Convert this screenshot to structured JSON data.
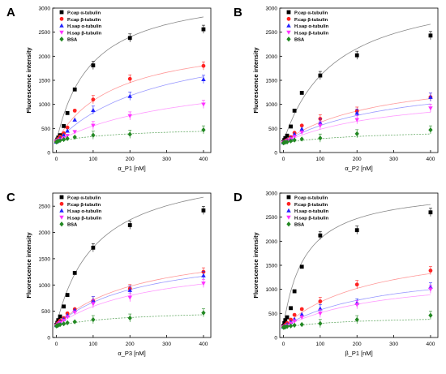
{
  "chart_data": [
    {
      "type": "scatter",
      "panel_label": "A",
      "xlabel": "α_P1 [nM]",
      "ylabel": "Fluorescence intensity",
      "xlim": [
        -10,
        420
      ],
      "ylim": [
        0,
        3000
      ],
      "xticks": [
        0,
        100,
        200,
        300,
        400
      ],
      "yticks": [
        0,
        500,
        1000,
        1500,
        2000,
        2500,
        3000
      ],
      "legend_position": "top-left",
      "x": [
        0,
        2.5,
        5,
        10,
        20,
        30,
        50,
        100,
        200,
        400
      ],
      "series": [
        {
          "name": "P.cap α-tubulin",
          "marker": "square",
          "color": "#000000",
          "fit_color": "#888888",
          "values": [
            230,
            270,
            310,
            360,
            550,
            820,
            1310,
            1810,
            2380,
            2560
          ],
          "bmax": 3200,
          "kd": 95,
          "base": 230
        },
        {
          "name": "P.cap β-tubulin",
          "marker": "circle",
          "color": "#ff2222",
          "fit_color": "#ff9a9a",
          "values": [
            230,
            250,
            280,
            330,
            400,
            520,
            870,
            1100,
            1530,
            1800
          ],
          "bmax": 2200,
          "kd": 160,
          "base": 230
        },
        {
          "name": "H.sap α-tubulin",
          "marker": "triangle-up",
          "color": "#2222ff",
          "fit_color": "#9a9aff",
          "values": [
            220,
            240,
            260,
            300,
            360,
            450,
            680,
            880,
            1170,
            1520
          ],
          "bmax": 2300,
          "kd": 280,
          "base": 220
        },
        {
          "name": "H.sap β-tubulin",
          "marker": "triangle-down",
          "color": "#ff33ff",
          "fit_color": "#ff9aff",
          "values": [
            220,
            240,
            250,
            270,
            300,
            350,
            430,
            560,
            760,
            1000
          ],
          "bmax": 1500,
          "kd": 350,
          "base": 220
        },
        {
          "name": "BSA",
          "marker": "diamond",
          "color": "#228822",
          "fit_color": "#66aa66",
          "values": [
            220,
            230,
            240,
            250,
            270,
            290,
            320,
            360,
            380,
            470
          ],
          "bmax": 320,
          "kd": 180,
          "base": 220
        }
      ]
    },
    {
      "type": "scatter",
      "panel_label": "B",
      "xlabel": "α_P2 [nM]",
      "ylabel": "Fluorescence intensity",
      "xlim": [
        -10,
        420
      ],
      "ylim": [
        0,
        3000
      ],
      "xticks": [
        0,
        100,
        200,
        300,
        400
      ],
      "yticks": [
        0,
        500,
        1000,
        1500,
        2000,
        2500,
        3000
      ],
      "legend_position": "top-left",
      "x": [
        0,
        2.5,
        5,
        10,
        20,
        30,
        50,
        100,
        200,
        400
      ],
      "series": [
        {
          "name": "P.cap α-tubulin",
          "marker": "square",
          "color": "#000000",
          "fit_color": "#888888",
          "values": [
            220,
            260,
            300,
            350,
            540,
            870,
            1240,
            1600,
            2020,
            2430
          ],
          "bmax": 3300,
          "kd": 140,
          "base": 220
        },
        {
          "name": "P.cap β-tubulin",
          "marker": "circle",
          "color": "#ff2222",
          "fit_color": "#ff9a9a",
          "values": [
            210,
            220,
            240,
            260,
            320,
            410,
            560,
            700,
            860,
            1150
          ],
          "bmax": 1500,
          "kd": 260,
          "base": 210
        },
        {
          "name": "H.sap α-tubulin",
          "marker": "triangle-up",
          "color": "#2222ff",
          "fit_color": "#9a9aff",
          "values": [
            210,
            220,
            230,
            250,
            300,
            380,
            490,
            620,
            820,
            1150
          ],
          "bmax": 1400,
          "kd": 300,
          "base": 210
        },
        {
          "name": "H.sap β-tubulin",
          "marker": "triangle-down",
          "color": "#ff33ff",
          "fit_color": "#ff9aff",
          "values": [
            200,
            210,
            220,
            240,
            280,
            330,
            420,
            560,
            680,
            920
          ],
          "bmax": 1100,
          "kd": 290,
          "base": 200
        },
        {
          "name": "BSA",
          "marker": "diamond",
          "color": "#228822",
          "fit_color": "#66aa66",
          "values": [
            200,
            210,
            215,
            220,
            240,
            260,
            280,
            300,
            390,
            470
          ],
          "bmax": 300,
          "kd": 250,
          "base": 200
        }
      ]
    },
    {
      "type": "scatter",
      "panel_label": "C",
      "xlabel": "α_P3 [nM]",
      "ylabel": "Fluorescence intensity",
      "xlim": [
        -10,
        420
      ],
      "ylim": [
        0,
        2750
      ],
      "xticks": [
        0,
        100,
        200,
        300,
        400
      ],
      "yticks": [
        0,
        500,
        1000,
        1500,
        2000,
        2500
      ],
      "legend_position": "top-left",
      "x": [
        0,
        2.5,
        5,
        10,
        20,
        30,
        50,
        100,
        200,
        400
      ],
      "series": [
        {
          "name": "P.cap α-tubulin",
          "marker": "square",
          "color": "#000000",
          "fit_color": "#888888",
          "values": [
            240,
            280,
            330,
            400,
            590,
            810,
            1230,
            1710,
            2140,
            2420
          ],
          "bmax": 3100,
          "kd": 110,
          "base": 240
        },
        {
          "name": "P.cap β-tubulin",
          "marker": "circle",
          "color": "#ff2222",
          "fit_color": "#ff9a9a",
          "values": [
            230,
            250,
            280,
            320,
            370,
            460,
            540,
            700,
            930,
            1250
          ],
          "bmax": 1600,
          "kd": 230,
          "base": 230
        },
        {
          "name": "H.sap α-tubulin",
          "marker": "triangle-up",
          "color": "#2222ff",
          "fit_color": "#9a9aff",
          "values": [
            230,
            240,
            260,
            300,
            350,
            420,
            520,
            700,
            900,
            1180
          ],
          "bmax": 1500,
          "kd": 240,
          "base": 230
        },
        {
          "name": "H.sap β-tubulin",
          "marker": "triangle-down",
          "color": "#ff33ff",
          "fit_color": "#ff9aff",
          "values": [
            220,
            230,
            250,
            280,
            320,
            390,
            480,
            640,
            760,
            1030
          ],
          "bmax": 1300,
          "kd": 250,
          "base": 220
        },
        {
          "name": "BSA",
          "marker": "diamond",
          "color": "#228822",
          "fit_color": "#66aa66",
          "values": [
            220,
            225,
            235,
            245,
            260,
            280,
            300,
            340,
            370,
            470
          ],
          "bmax": 320,
          "kd": 200,
          "base": 220
        }
      ]
    },
    {
      "type": "scatter",
      "panel_label": "D",
      "xlabel": "β_P1 [nM]",
      "ylabel": "Fluorescence intensity",
      "xlim": [
        -10,
        420
      ],
      "ylim": [
        0,
        3000
      ],
      "xticks": [
        0,
        100,
        200,
        300,
        400
      ],
      "yticks": [
        0,
        500,
        1000,
        1500,
        2000,
        2500,
        3000
      ],
      "legend_position": "top-left",
      "x": [
        0,
        2.5,
        5,
        10,
        20,
        30,
        50,
        100,
        200,
        400
      ],
      "series": [
        {
          "name": "P.cap α-tubulin",
          "marker": "square",
          "color": "#000000",
          "fit_color": "#888888",
          "values": [
            240,
            300,
            360,
            420,
            610,
            960,
            1470,
            2120,
            2230,
            2600
          ],
          "bmax": 2900,
          "kd": 60,
          "base": 240
        },
        {
          "name": "P.cap β-tubulin",
          "marker": "circle",
          "color": "#ff2222",
          "fit_color": "#ff9a9a",
          "values": [
            220,
            240,
            260,
            300,
            370,
            470,
            590,
            750,
            1100,
            1390
          ],
          "bmax": 1800,
          "kd": 250,
          "base": 220
        },
        {
          "name": "H.sap α-tubulin",
          "marker": "triangle-up",
          "color": "#2222ff",
          "fit_color": "#9a9aff",
          "values": [
            220,
            230,
            240,
            270,
            320,
            380,
            480,
            600,
            720,
            1050
          ],
          "bmax": 1300,
          "kd": 270,
          "base": 220
        },
        {
          "name": "H.sap β-tubulin",
          "marker": "triangle-down",
          "color": "#ff33ff",
          "fit_color": "#ff9aff",
          "values": [
            210,
            220,
            230,
            250,
            290,
            340,
            420,
            500,
            680,
            1000
          ],
          "bmax": 1150,
          "kd": 280,
          "base": 210
        },
        {
          "name": "BSA",
          "marker": "diamond",
          "color": "#228822",
          "fit_color": "#66aa66",
          "values": [
            210,
            215,
            220,
            230,
            240,
            255,
            270,
            290,
            370,
            460
          ],
          "bmax": 250,
          "kd": 200,
          "base": 210
        }
      ]
    }
  ]
}
